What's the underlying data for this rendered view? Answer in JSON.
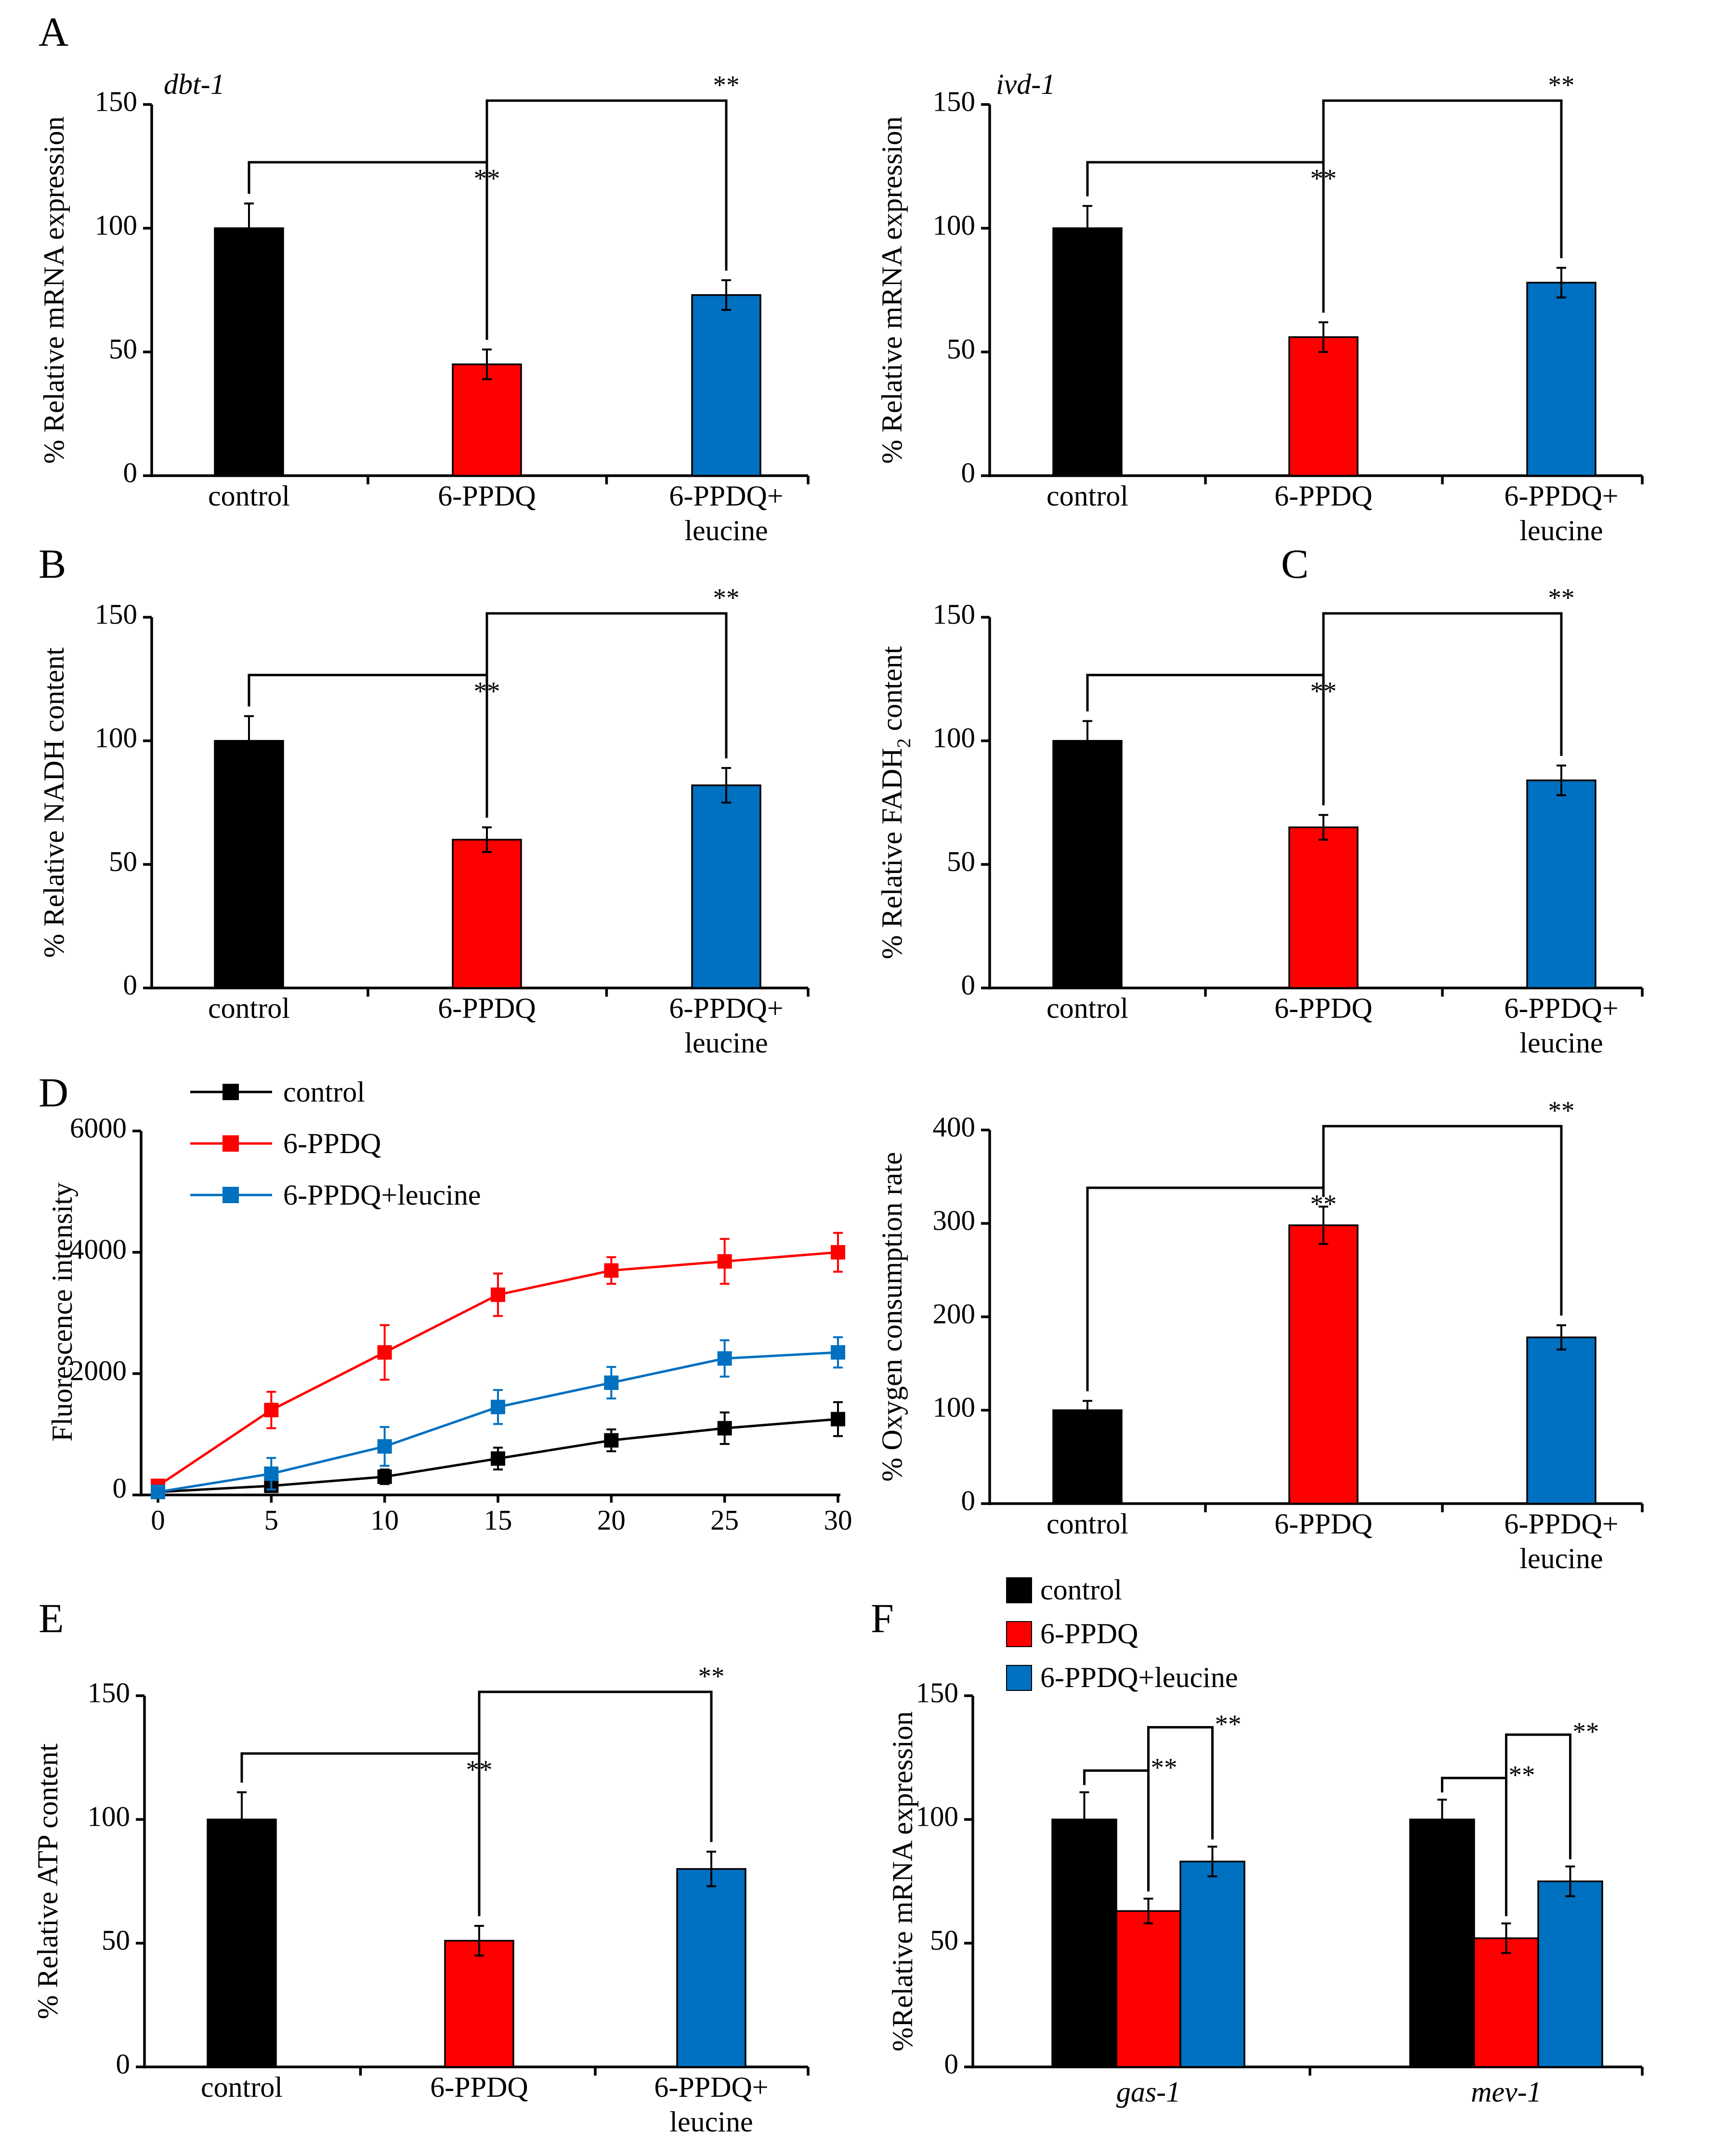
{
  "colors": {
    "control": "#000000",
    "ppdq": "#ff0000",
    "leucine": "#0070c0"
  },
  "chart_data": [
    {
      "id": "A-left",
      "panel_label": "A",
      "gene": "dbt-1",
      "type": "bar",
      "ylabel": "% Relative  mRNA  expression",
      "ylim": [
        0,
        150
      ],
      "yticks": [
        0,
        50,
        100,
        150
      ],
      "categories": [
        "control",
        "6-PPDQ",
        "6-PPDQ+|leucine"
      ],
      "values": [
        100,
        45,
        73
      ],
      "errors": [
        10,
        6,
        6
      ],
      "significance": [
        {
          "from": 0,
          "to": 1,
          "label": "**"
        },
        {
          "from": 1,
          "to": 2,
          "label": "**"
        }
      ]
    },
    {
      "id": "A-right",
      "panel_label": "",
      "gene": "ivd-1",
      "type": "bar",
      "ylabel": "% Relative  mRNA  expression",
      "ylim": [
        0,
        150
      ],
      "yticks": [
        0,
        50,
        100,
        150
      ],
      "categories": [
        "control",
        "6-PPDQ",
        "6-PPDQ+|leucine"
      ],
      "values": [
        100,
        56,
        78
      ],
      "errors": [
        9,
        6,
        6
      ],
      "significance": [
        {
          "from": 0,
          "to": 1,
          "label": "**"
        },
        {
          "from": 1,
          "to": 2,
          "label": "**"
        }
      ]
    },
    {
      "id": "B",
      "panel_label": "B",
      "type": "bar",
      "ylabel": "% Relative NADH content",
      "ylim": [
        0,
        150
      ],
      "yticks": [
        0,
        50,
        100,
        150
      ],
      "categories": [
        "control",
        "6-PPDQ",
        "6-PPDQ+|leucine"
      ],
      "values": [
        100,
        60,
        82
      ],
      "errors": [
        10,
        5,
        7
      ],
      "significance": [
        {
          "from": 0,
          "to": 1,
          "label": "**"
        },
        {
          "from": 1,
          "to": 2,
          "label": "**"
        }
      ]
    },
    {
      "id": "C",
      "panel_label": "C",
      "type": "bar",
      "ylabel": "% Relative FADH2 content",
      "ylim": [
        0,
        150
      ],
      "yticks": [
        0,
        50,
        100,
        150
      ],
      "categories": [
        "control",
        "6-PPDQ",
        "6-PPDQ+|leucine"
      ],
      "values": [
        100,
        65,
        84
      ],
      "errors": [
        8,
        5,
        6
      ],
      "significance": [
        {
          "from": 0,
          "to": 1,
          "label": "**"
        },
        {
          "from": 1,
          "to": 2,
          "label": "**"
        }
      ]
    },
    {
      "id": "D-left",
      "panel_label": "D",
      "type": "line",
      "ylabel": "Fluorescence intensity",
      "xlabel": "",
      "x": [
        0,
        5,
        10,
        15,
        20,
        25,
        30
      ],
      "xticks": [
        0,
        5,
        10,
        15,
        20,
        25,
        30
      ],
      "xlim": [
        0,
        30
      ],
      "ylim": [
        0,
        6000
      ],
      "yticks": [
        0,
        2000,
        4000,
        6000
      ],
      "legend": "top-left",
      "series": [
        {
          "name": "control",
          "color_key": "control",
          "values": [
            50,
            150,
            300,
            600,
            900,
            1100,
            1250
          ],
          "errors": [
            20,
            50,
            120,
            180,
            180,
            260,
            280
          ]
        },
        {
          "name": "6-PPDQ",
          "color_key": "ppdq",
          "values": [
            150,
            1400,
            2350,
            3300,
            3700,
            3850,
            4000
          ],
          "errors": [
            40,
            300,
            450,
            350,
            220,
            370,
            320
          ]
        },
        {
          "name": "6-PPDQ+leucine",
          "color_key": "leucine",
          "values": [
            50,
            350,
            800,
            1450,
            1850,
            2250,
            2350
          ],
          "errors": [
            20,
            260,
            320,
            280,
            260,
            300,
            250
          ]
        }
      ]
    },
    {
      "id": "D-right",
      "panel_label": "",
      "type": "bar",
      "ylabel": "% Oxygen consumption rate",
      "ylim": [
        0,
        400
      ],
      "yticks": [
        0,
        100,
        200,
        300,
        400
      ],
      "categories": [
        "control",
        "6-PPDQ",
        "6-PPDQ+|leucine"
      ],
      "values": [
        100,
        298,
        178
      ],
      "errors": [
        10,
        20,
        13
      ],
      "significance": [
        {
          "from": 0,
          "to": 1,
          "label": "**"
        },
        {
          "from": 1,
          "to": 2,
          "label": "**"
        }
      ]
    },
    {
      "id": "E",
      "panel_label": "E",
      "type": "bar",
      "ylabel": "% Relative ATP content",
      "ylim": [
        0,
        150
      ],
      "yticks": [
        0,
        50,
        100,
        150
      ],
      "categories": [
        "control",
        "6-PPDQ",
        "6-PPDQ+|leucine"
      ],
      "values": [
        100,
        51,
        80
      ],
      "errors": [
        11,
        6,
        7
      ],
      "significance": [
        {
          "from": 0,
          "to": 1,
          "label": "**"
        },
        {
          "from": 1,
          "to": 2,
          "label": "**"
        }
      ]
    },
    {
      "id": "F",
      "panel_label": "F",
      "type": "grouped_bar",
      "ylabel": "%Relative  mRNA  expression",
      "ylim": [
        0,
        150
      ],
      "yticks": [
        0,
        50,
        100,
        150
      ],
      "groups": [
        "gas-1",
        "mev-1"
      ],
      "legend": "top-left",
      "series": [
        {
          "name": "control",
          "color_key": "control",
          "values": [
            100,
            100
          ],
          "errors": [
            11,
            8
          ]
        },
        {
          "name": "6-PPDQ",
          "color_key": "ppdq",
          "values": [
            63,
            52
          ],
          "errors": [
            5,
            6
          ]
        },
        {
          "name": "6-PPDQ+leucine",
          "color_key": "leucine",
          "values": [
            83,
            75
          ],
          "errors": [
            6,
            6
          ]
        }
      ],
      "significance": [
        {
          "from": 0,
          "to": 1,
          "label": "**"
        },
        {
          "from": 1,
          "to": 2,
          "label": "**"
        }
      ]
    }
  ]
}
